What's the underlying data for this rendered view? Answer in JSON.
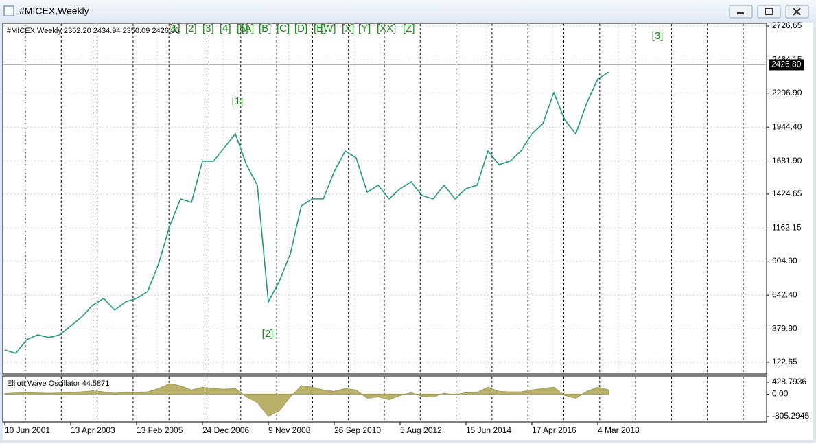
{
  "window": {
    "title": "#MICEX,Weekly"
  },
  "chart_data": [
    {
      "type": "line",
      "title": "#MICEX,Weekly  2362.20 2434.94 2350.09 2426.80",
      "categories": [
        "10 Jun 2001",
        null,
        null,
        null,
        null,
        null,
        "13 Apr 2003",
        null,
        null,
        null,
        null,
        null,
        "13 Feb 2005",
        null,
        null,
        null,
        null,
        null,
        "24 Dec 2006",
        null,
        null,
        null,
        null,
        null,
        "9 Nov 2008",
        null,
        null,
        null,
        null,
        null,
        "26 Sep 2010",
        null,
        null,
        null,
        null,
        null,
        "5 Aug 2012",
        null,
        null,
        null,
        null,
        null,
        "15 Jun 2014",
        null,
        null,
        null,
        null,
        null,
        "17 Apr 2016",
        null,
        null,
        null,
        null,
        null,
        "4 Mar 2018",
        null
      ],
      "values": [
        218,
        192,
        298,
        335,
        314,
        335,
        404,
        473,
        564,
        617,
        527,
        590,
        617,
        670,
        883,
        1175,
        1388,
        1361,
        1680,
        1680,
        1786,
        1892,
        1653,
        1494,
        590,
        750,
        962,
        1334,
        1388,
        1388,
        1600,
        1759,
        1706,
        1440,
        1494,
        1388,
        1467,
        1520,
        1414,
        1388,
        1494,
        1388,
        1467,
        1494,
        1759,
        1653,
        1680,
        1759,
        1892,
        1972,
        2211,
        1998,
        1892,
        2131,
        2317,
        2370
      ],
      "color": "#1f9b7c",
      "ylim": [
        32,
        2748
      ],
      "yticks": [
        122.65,
        {
          "value": 379.9,
          "label": "379.90"
        },
        {
          "value": 642.4,
          "label": "642.40"
        },
        {
          "value": 904.9,
          "label": "904.90"
        },
        1162.15,
        1424.65,
        {
          "value": 1681.9,
          "label": "1681.90"
        },
        {
          "value": 1944.4,
          "label": "1944.40"
        },
        {
          "value": 2206.9,
          "label": "2206.90"
        },
        2464.15,
        2726.65
      ],
      "last_price": {
        "value": 2426.8,
        "label": "2426.80"
      },
      "wave_labels": [
        "[1]",
        "[2]",
        "[3]"
      ],
      "wave_menu": [
        "[1]",
        "[2]",
        "[3]",
        "[4]",
        "[5]",
        "[A]",
        "[B]",
        "[C]",
        "[D]",
        "[E]",
        "[W]",
        "[X]",
        "[Y]",
        "[XX]",
        "[Z]"
      ],
      "grid": true
    },
    {
      "type": "area",
      "title": "Elliott Wave Oscillator 44.5871",
      "values": [
        20,
        40,
        50,
        40,
        30,
        40,
        60,
        80,
        120,
        80,
        30,
        60,
        40,
        80,
        200,
        380,
        300,
        150,
        250,
        200,
        180,
        200,
        -100,
        -300,
        -800,
        -600,
        -100,
        300,
        250,
        150,
        100,
        200,
        150,
        -150,
        -100,
        -200,
        -50,
        50,
        -80,
        -100,
        30,
        -20,
        50,
        60,
        250,
        100,
        80,
        80,
        150,
        200,
        250,
        -50,
        -150,
        100,
        250,
        150
      ],
      "color": "#b9b06a",
      "ylim": [
        -1002,
        651
      ],
      "yticks": [
        428.7936,
        {
          "value": 0,
          "label": "0.00"
        },
        -805.2945
      ]
    }
  ]
}
